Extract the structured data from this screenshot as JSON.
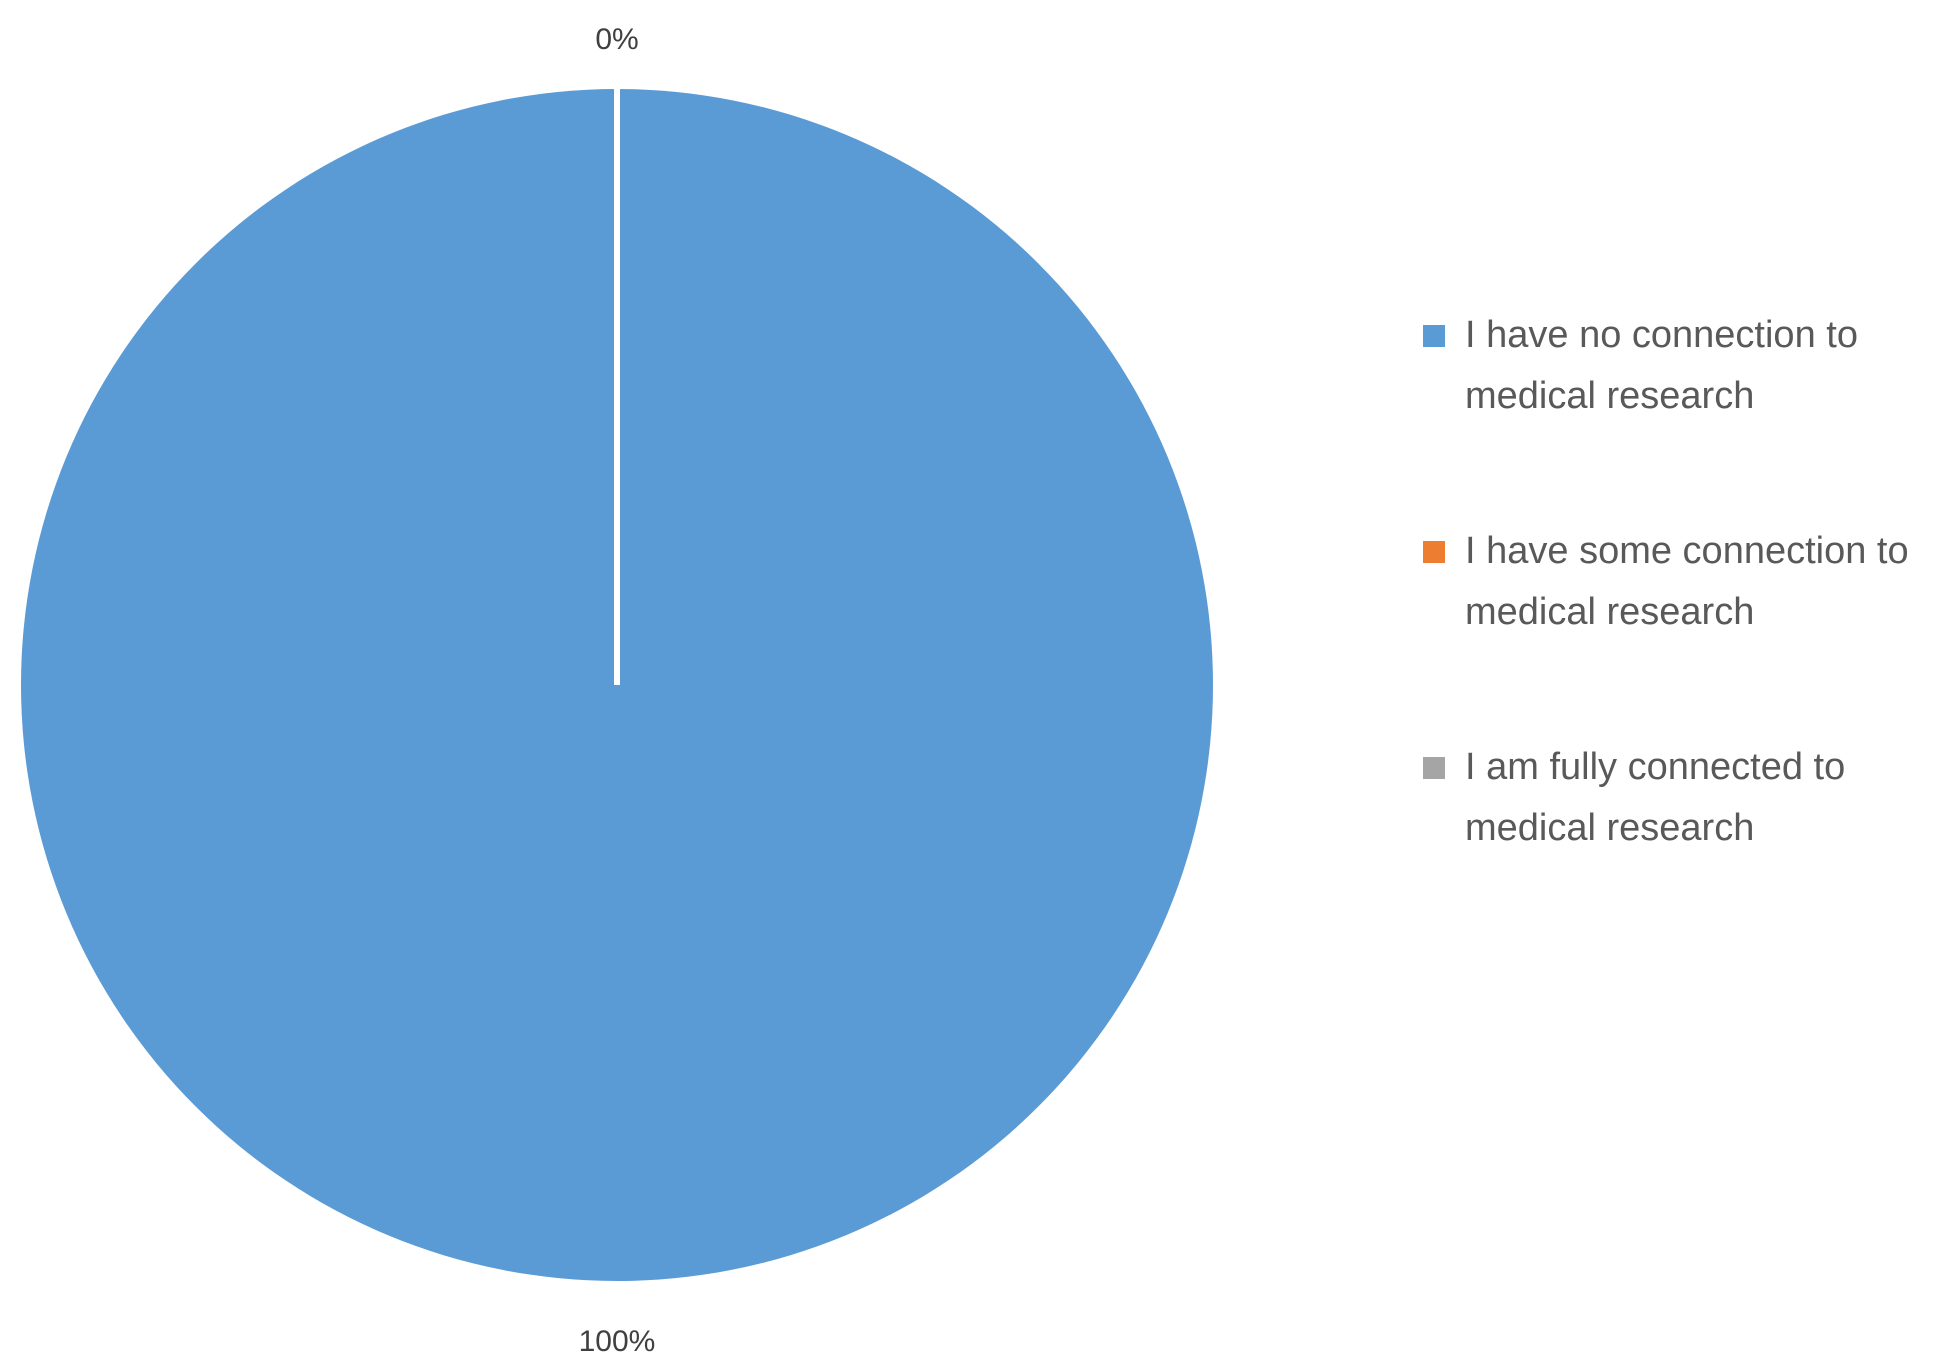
{
  "chart_data": {
    "type": "pie",
    "title": "",
    "categories": [
      "I have no connection to medical research",
      "I have some connection to medical research",
      "I am fully connected to medical research"
    ],
    "values": [
      100,
      0,
      0
    ],
    "data_labels": [
      "100%",
      "0%",
      "0%"
    ],
    "colors": [
      "#5b9bd5",
      "#ed7d31",
      "#a5a5a5"
    ],
    "legend_placement": "right",
    "legend": [
      {
        "label": "I have no connection to medical research",
        "color": "#5b9bd5"
      },
      {
        "label": "I have some connection to medical research",
        "color": "#ed7d31"
      },
      {
        "label": "I am fully connected to medical research",
        "color": "#a5a5a5"
      }
    ]
  }
}
